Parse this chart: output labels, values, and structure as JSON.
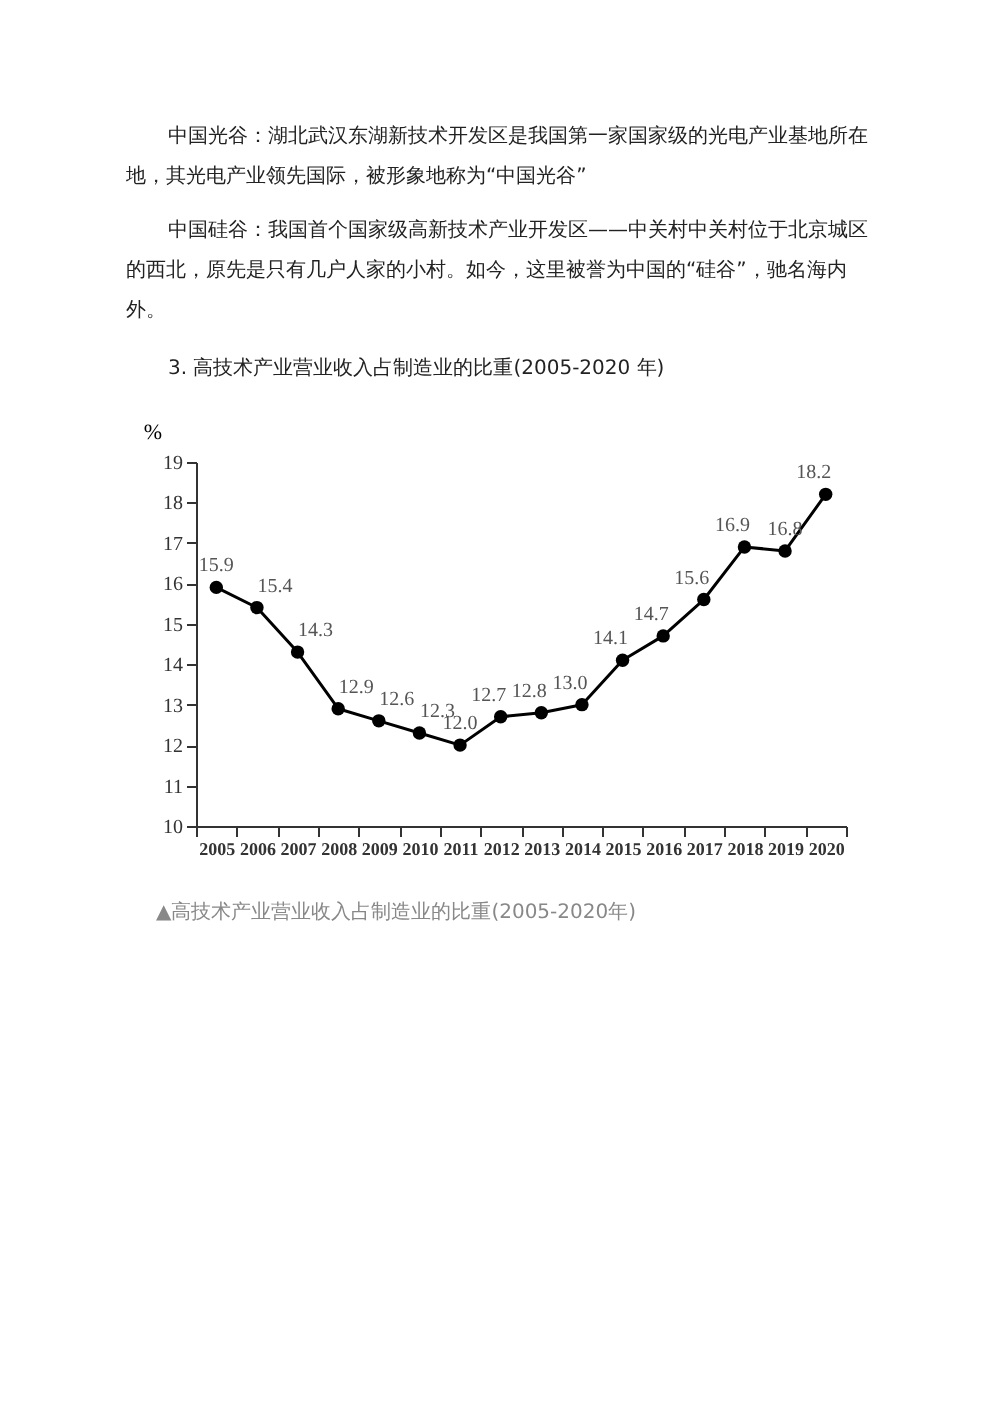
{
  "chart_data": {
    "type": "line",
    "title": "3. 高技术产业营业收入占制造业的比重(2005-2020 年)",
    "ylabel": "%",
    "annotations": [
      "中国光谷：湖北武汉东湖新技术开发区是我国第一家国家级的光电产业基地所在地，其光电产业领先国际，被形象地称为“中国光谷”",
      "中国硅谷：我国首个国家级高新技术产业开发区——中关村中关村位于北京城区的西北，原先是只有几户人家的小村。如今，这里被誉为中国的“硅谷”，驰名海内外。",
      "▲高技术产业营业收入占制造业的比重(2005-2020年)"
    ],
    "categories": [
      "2005",
      "2006",
      "2007",
      "2008",
      "2009",
      "2010",
      "2011",
      "2012",
      "2013",
      "2014",
      "2015",
      "2016",
      "2017",
      "2018",
      "2019",
      "2020"
    ],
    "series": [
      {
        "color": "#000000",
        "values": [
          15.9,
          15.4,
          14.3,
          12.9,
          12.6,
          12.3,
          12.0,
          12.7,
          12.8,
          13.0,
          14.1,
          14.7,
          15.6,
          16.9,
          16.8,
          18.2
        ],
        "value_labels": [
          "15.9",
          "15.4",
          "14.3",
          "12.9",
          "12.6",
          "12.3",
          "12.0",
          "12.7",
          "12.8",
          "13.0",
          "14.1",
          "14.7",
          "15.6",
          "16.9",
          "16.8",
          "18.2"
        ]
      }
    ],
    "ylim": [
      10,
      19
    ],
    "yticks": [
      10,
      11,
      12,
      13,
      14,
      15,
      16,
      17,
      18,
      19
    ],
    "marker": "circle",
    "line_style": "solid",
    "grid": false
  }
}
